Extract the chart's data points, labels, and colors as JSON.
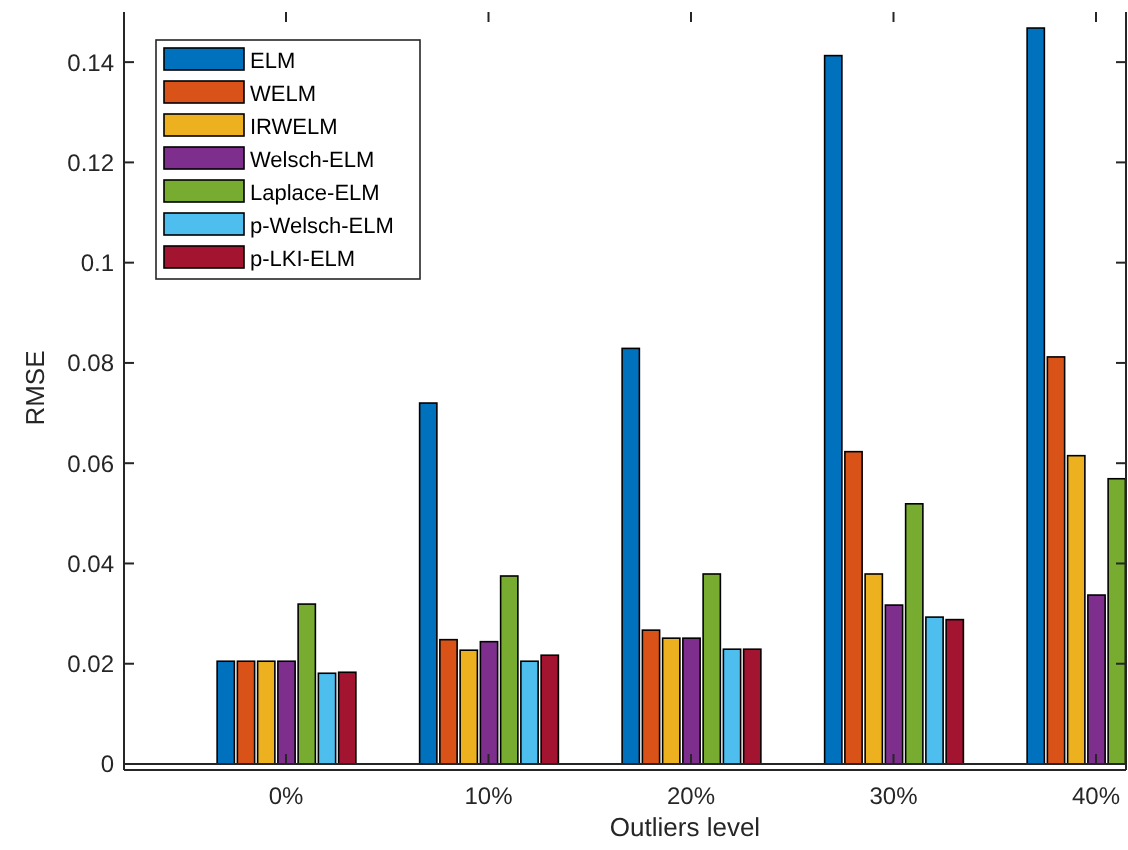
{
  "chart_data": {
    "type": "bar",
    "xlabel": "Outliers level",
    "ylabel": "RMSE",
    "categories": [
      "0%",
      "10%",
      "20%",
      "30%",
      "40%"
    ],
    "series": [
      {
        "name": "ELM",
        "color": "#0072bd",
        "values": [
          0.0205,
          0.072,
          0.0829,
          0.1413,
          0.1468
        ]
      },
      {
        "name": "WELM",
        "color": "#d95319",
        "values": [
          0.0205,
          0.0248,
          0.0267,
          0.0623,
          0.0812
        ]
      },
      {
        "name": "IRWELM",
        "color": "#edb120",
        "values": [
          0.0205,
          0.0227,
          0.0251,
          0.0379,
          0.0615
        ]
      },
      {
        "name": "Welsch-ELM",
        "color": "#7e2f8e",
        "values": [
          0.0205,
          0.0244,
          0.0251,
          0.0317,
          0.0337
        ]
      },
      {
        "name": "Laplace-ELM",
        "color": "#77ac30",
        "values": [
          0.0319,
          0.0375,
          0.0379,
          0.0519,
          0.0569
        ]
      },
      {
        "name": "p-Welsch-ELM",
        "color": "#4dbeee",
        "values": [
          0.0181,
          0.0205,
          0.0229,
          0.0293,
          null
        ]
      },
      {
        "name": "p-LKI-ELM",
        "color": "#a2142f",
        "values": [
          0.0183,
          0.0217,
          0.0229,
          0.0288,
          null
        ]
      }
    ],
    "ylim": [
      0,
      0.15
    ],
    "yticks": [
      0,
      0.02,
      0.04,
      0.06,
      0.08,
      0.1,
      0.12,
      0.14
    ],
    "grid": false,
    "legend": "top left"
  }
}
